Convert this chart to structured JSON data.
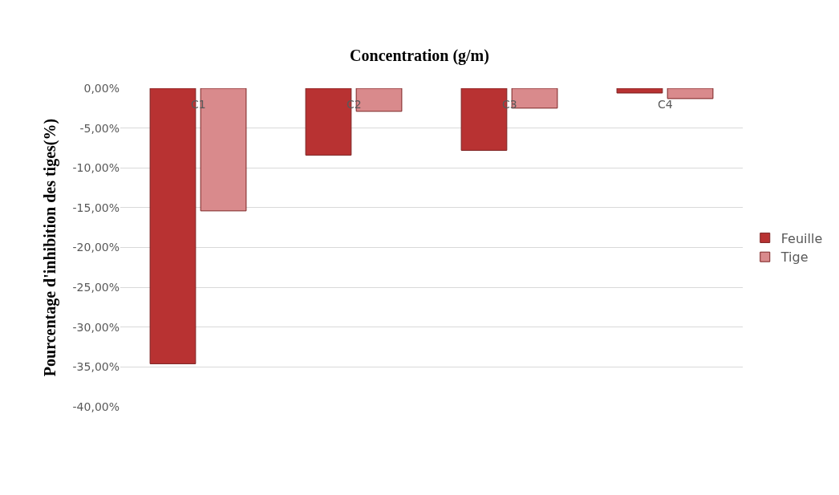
{
  "chart_data": {
    "type": "bar",
    "title": "Concentration (g/m)",
    "ylabel": "Pourcentage d'inhibition des tiges(%)",
    "categories": [
      "C1",
      "C2",
      "C3",
      "C4"
    ],
    "series": [
      {
        "name": "Feuille",
        "color": "#b83232",
        "values": [
          -34.6,
          -8.4,
          -7.8,
          -0.6
        ]
      },
      {
        "name": "Tige",
        "color": "#d98a8c",
        "values": [
          -15.4,
          -2.9,
          -2.5,
          -1.3
        ]
      }
    ],
    "ylim": [
      -40,
      0
    ],
    "yticks": [
      {
        "value": 0,
        "label": "0,00%"
      },
      {
        "value": -5,
        "label": "-5,00%"
      },
      {
        "value": -10,
        "label": "-10,00%"
      },
      {
        "value": -15,
        "label": "-15,00%"
      },
      {
        "value": -20,
        "label": "-20,00%"
      },
      {
        "value": -25,
        "label": "-25,00%"
      },
      {
        "value": -30,
        "label": "-30,00%"
      },
      {
        "value": -35,
        "label": "-35,00%"
      },
      {
        "value": -40,
        "label": "-40,00%"
      }
    ],
    "grid": "y",
    "legend": "right"
  }
}
